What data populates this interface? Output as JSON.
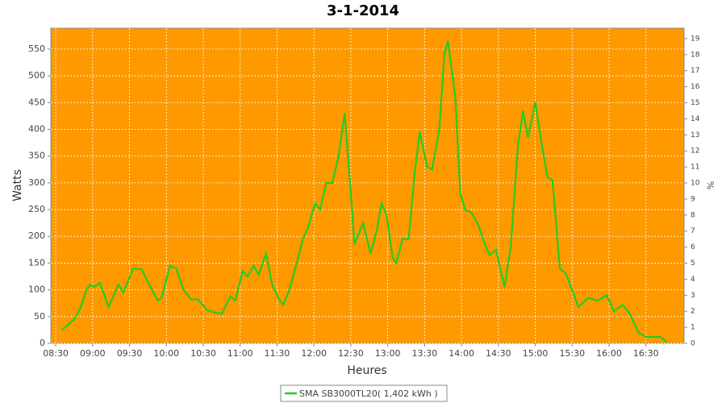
{
  "chart_data": {
    "type": "line",
    "title": "3-1-2014",
    "x_label": "Heures",
    "y_label": "Watts",
    "y2_label": "%",
    "x": [
      "08:35",
      "08:40",
      "08:45",
      "08:50",
      "08:55",
      "08:58",
      "09:01",
      "09:06",
      "09:13",
      "09:21",
      "09:25",
      "09:33",
      "09:40",
      "09:46",
      "09:53",
      "09:56",
      "10:03",
      "10:08",
      "10:14",
      "10:20",
      "10:26",
      "10:33",
      "10:39",
      "10:45",
      "10:52",
      "10:56",
      "11:02",
      "11:06",
      "11:11",
      "11:15",
      "11:21",
      "11:26",
      "11:31",
      "11:35",
      "11:40",
      "11:46",
      "11:51",
      "11:55",
      "12:01",
      "12:05",
      "12:10",
      "12:15",
      "12:20",
      "12:25",
      "12:29",
      "12:33",
      "12:40",
      "12:46",
      "12:51",
      "12:55",
      "12:59",
      "13:04",
      "13:07",
      "13:12",
      "13:17",
      "13:22",
      "13:26",
      "13:32",
      "13:36",
      "13:42",
      "13:46",
      "13:49",
      "13:55",
      "13:59",
      "14:03",
      "14:08",
      "14:14",
      "14:19",
      "14:23",
      "14:28",
      "14:35",
      "14:40",
      "14:46",
      "14:50",
      "14:54",
      "15:00",
      "15:05",
      "15:10",
      "15:14",
      "15:20",
      "15:25",
      "15:30",
      "15:35",
      "15:43",
      "15:51",
      "15:58",
      "16:04",
      "16:11",
      "16:17",
      "16:24",
      "16:30",
      "16:36",
      "16:42",
      "16:47"
    ],
    "series": [
      {
        "name": "SMA SB3000TL20( 1,402 kWh )",
        "color": "#22cc22",
        "values": [
          25,
          35,
          45,
          65,
          100,
          110,
          105,
          113,
          68,
          110,
          95,
          140,
          138,
          110,
          80,
          85,
          145,
          140,
          100,
          82,
          82,
          62,
          58,
          55,
          88,
          80,
          135,
          125,
          145,
          128,
          168,
          110,
          85,
          72,
          100,
          150,
          195,
          215,
          262,
          250,
          300,
          300,
          350,
          430,
          310,
          185,
          225,
          168,
          210,
          262,
          240,
          160,
          150,
          195,
          195,
          320,
          395,
          330,
          325,
          400,
          540,
          565,
          460,
          280,
          250,
          245,
          220,
          185,
          165,
          175,
          105,
          180,
          370,
          435,
          385,
          450,
          375,
          310,
          305,
          140,
          130,
          100,
          68,
          85,
          80,
          90,
          60,
          72,
          55,
          20,
          12,
          12,
          12,
          2
        ]
      }
    ],
    "xlim": [
      "08:26",
      "17:01"
    ],
    "xticks": [
      "08:30",
      "09:00",
      "09:30",
      "10:00",
      "10:30",
      "11:00",
      "11:30",
      "12:00",
      "12:30",
      "13:00",
      "13:30",
      "14:00",
      "14:30",
      "15:00",
      "15:30",
      "16:00",
      "16:30"
    ],
    "ylim": [
      0,
      589
    ],
    "yticks": [
      0,
      50,
      100,
      150,
      200,
      250,
      300,
      350,
      400,
      450,
      500,
      550
    ],
    "y2lim": [
      0,
      19.65
    ],
    "y2ticks": [
      0,
      1,
      2,
      3,
      4,
      5,
      6,
      7,
      8,
      9,
      10,
      11,
      12,
      13,
      14,
      15,
      16,
      17,
      18,
      19
    ],
    "grid": true,
    "plot_background": "#ff9900",
    "legend": "bottom"
  }
}
